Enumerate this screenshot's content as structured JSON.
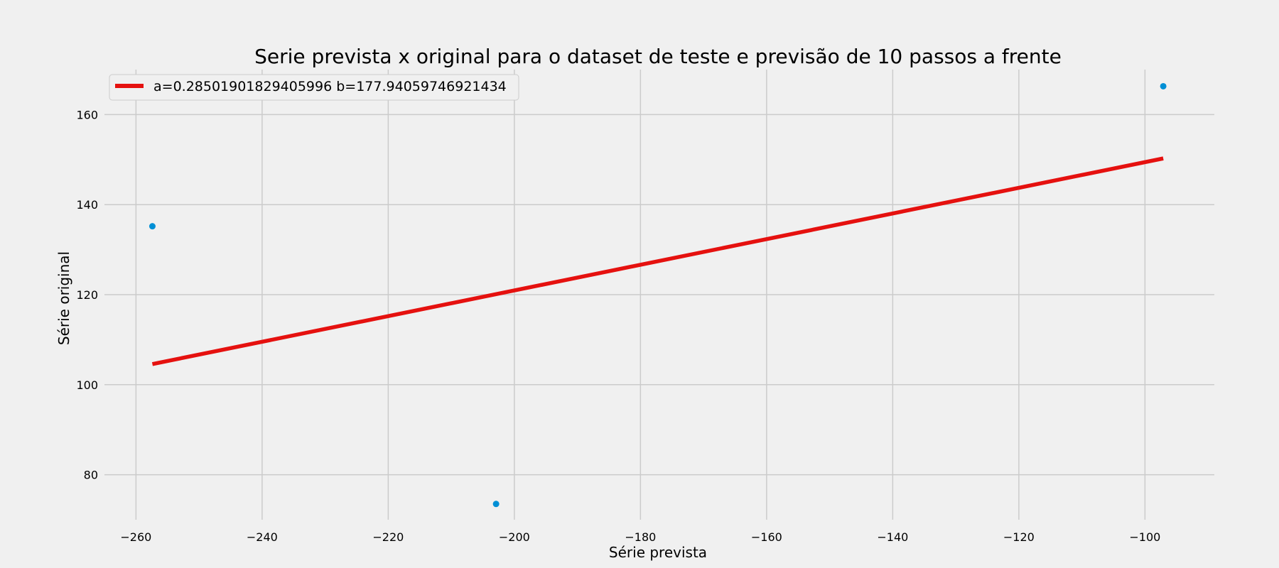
{
  "chart_data": {
    "type": "scatter",
    "title": "Serie prevista x original para o dataset de teste e previsão de 10 passos a frente",
    "xlabel": "Série prevista",
    "ylabel": "Série original",
    "xlim": [
      -265,
      -89
    ],
    "ylim": [
      70,
      170
    ],
    "xticks": [
      -260,
      -240,
      -220,
      -200,
      -180,
      -160,
      -140,
      -120,
      -100
    ],
    "yticks": [
      80,
      100,
      120,
      140,
      160
    ],
    "xtick_labels": [
      "−260",
      "−240",
      "−220",
      "−200",
      "−180",
      "−160",
      "−140",
      "−120",
      "−100"
    ],
    "ytick_labels": [
      "80",
      "100",
      "120",
      "140",
      "160"
    ],
    "grid": true,
    "legend_position": "top-left",
    "points": [
      {
        "x": -257.4,
        "y": 135.2
      },
      {
        "x": -202.9,
        "y": 73.5
      },
      {
        "x": -97.1,
        "y": 166.3
      }
    ],
    "point_color": "#008fd5",
    "fit_line": {
      "label": "a=0.28501901829405996 b=177.94059746921434",
      "a": 0.28501901829405996,
      "b": 177.94059746921434,
      "x_range": [
        -257.4,
        -97.1
      ],
      "color": "#e5110f"
    }
  }
}
